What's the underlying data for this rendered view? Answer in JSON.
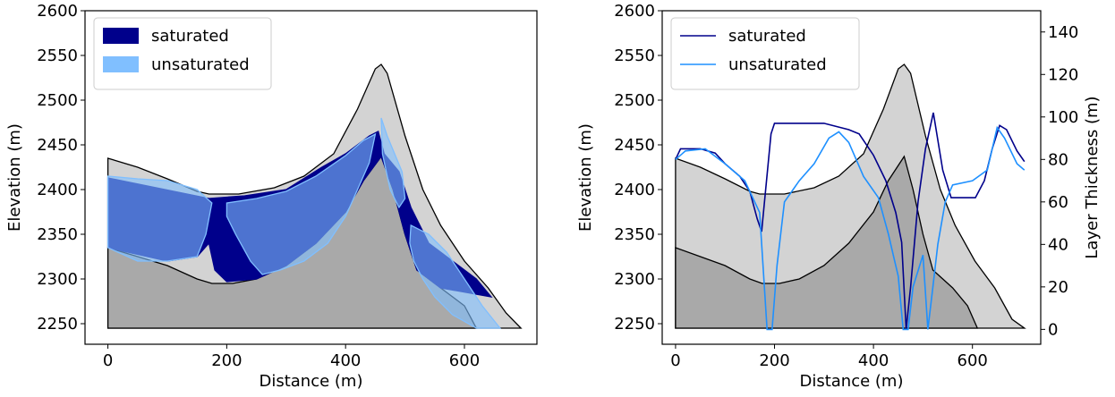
{
  "chart_data": [
    {
      "type": "area",
      "xlabel": "Distance (m)",
      "ylabel": "Elevation (m)",
      "xlim": [
        -38.5,
        722
      ],
      "ylim": [
        2227,
        2600
      ],
      "xticks": [
        0,
        200,
        400,
        600
      ],
      "yticks": [
        2250,
        2300,
        2350,
        2400,
        2450,
        2500,
        2550,
        2600
      ],
      "legend": "upper left",
      "areas": [
        {
          "color": "#d3d3d3",
          "x": [
            0,
            50,
            100,
            150,
            170,
            220,
            280,
            330,
            380,
            420,
            450,
            460,
            470,
            500,
            530,
            560,
            600,
            640,
            670,
            695,
            0
          ],
          "y": [
            2435,
            2425,
            2412,
            2398,
            2395,
            2395,
            2402,
            2415,
            2440,
            2490,
            2535,
            2540,
            2530,
            2460,
            2400,
            2360,
            2320,
            2290,
            2262,
            2245,
            2245
          ]
        },
        {
          "color": "#a9a9a9",
          "x": [
            0,
            50,
            100,
            150,
            175,
            210,
            250,
            300,
            350,
            400,
            430,
            460,
            480,
            500,
            520,
            560,
            600,
            620,
            0
          ],
          "y": [
            2335,
            2325,
            2315,
            2300,
            2295,
            2295,
            2300,
            2315,
            2340,
            2375,
            2410,
            2437,
            2400,
            2350,
            2310,
            2290,
            2270,
            2245,
            2245
          ]
        }
      ],
      "series": [
        {
          "name": "saturated",
          "color": "#00008b",
          "x": [
            0,
            170,
            230,
            300,
            360,
            400,
            440,
            455,
            465,
            490,
            510,
            540,
            580,
            620,
            645,
            560,
            520,
            500,
            480,
            460,
            430,
            400,
            350,
            300,
            250,
            200,
            180,
            170,
            150,
            100,
            0
          ],
          "y": [
            2413,
            2390,
            2393,
            2400,
            2425,
            2440,
            2460,
            2465,
            2440,
            2420,
            2380,
            2340,
            2320,
            2300,
            2280,
            2290,
            2310,
            2350,
            2400,
            2437,
            2410,
            2375,
            2340,
            2315,
            2300,
            2297,
            2310,
            2340,
            2325,
            2320,
            2335
          ]
        },
        {
          "name": "unsaturated",
          "color": "#80bfff",
          "alpha": 0.6,
          "x": [
            0,
            50,
            100,
            150,
            175,
            165,
            150,
            100,
            50,
            0,
            null,
            200,
            250,
            300,
            350,
            400,
            430,
            450,
            440,
            420,
            400,
            370,
            330,
            290,
            260,
            240,
            215,
            200,
            null,
            460,
            470,
            495,
            500,
            490,
            475,
            462,
            null,
            510,
            540,
            570,
            600,
            630,
            660,
            620,
            580,
            550,
            530,
            515,
            508
          ],
          "y": [
            2415,
            2412,
            2410,
            2400,
            2385,
            2350,
            2325,
            2320,
            2320,
            2335,
            null,
            2385,
            2390,
            2398,
            2415,
            2438,
            2455,
            2462,
            2430,
            2400,
            2370,
            2340,
            2320,
            2310,
            2305,
            2320,
            2350,
            2370,
            null,
            2480,
            2460,
            2420,
            2390,
            2380,
            2400,
            2440,
            null,
            2360,
            2350,
            2330,
            2300,
            2270,
            2245,
            2245,
            2260,
            2280,
            2300,
            2320,
            2340
          ]
        }
      ]
    },
    {
      "type": "line",
      "xlabel": "Distance (m)",
      "ylabel": "Elevation (m)",
      "y2label": "Layer Thickness (m)",
      "xlim": [
        -27,
        738
      ],
      "ylim": [
        2227,
        2600
      ],
      "y2lim": [
        -7,
        150
      ],
      "xticks": [
        0,
        200,
        400,
        600
      ],
      "yticks": [
        2250,
        2300,
        2350,
        2400,
        2450,
        2500,
        2550,
        2600
      ],
      "y2ticks": [
        0,
        20,
        40,
        60,
        80,
        100,
        120,
        140
      ],
      "legend": "upper left",
      "areas": [
        {
          "color": "#d3d3d3",
          "x": [
            0,
            50,
            100,
            150,
            170,
            220,
            280,
            330,
            380,
            420,
            450,
            462,
            475,
            505,
            535,
            565,
            605,
            645,
            680,
            705,
            0
          ],
          "y": [
            2435,
            2425,
            2412,
            2398,
            2395,
            2395,
            2402,
            2415,
            2440,
            2490,
            2535,
            2540,
            2530,
            2460,
            2400,
            2360,
            2320,
            2290,
            2255,
            2245,
            2245
          ]
        },
        {
          "color": "#a9a9a9",
          "x": [
            0,
            50,
            100,
            150,
            175,
            210,
            250,
            300,
            350,
            400,
            430,
            462,
            480,
            500,
            520,
            560,
            590,
            610,
            0
          ],
          "y": [
            2335,
            2325,
            2315,
            2300,
            2295,
            2295,
            2300,
            2315,
            2340,
            2375,
            2410,
            2437,
            2400,
            2350,
            2310,
            2290,
            2270,
            2245,
            2245
          ]
        }
      ],
      "series": [
        {
          "name": "saturated",
          "color": "#00008b",
          "axis": "y2",
          "x": [
            0,
            10,
            50,
            80,
            100,
            130,
            150,
            165,
            174,
            193,
            200,
            250,
            300,
            350,
            371,
            400,
            425,
            445,
            457,
            466,
            475,
            490,
            505,
            521,
            540,
            557,
            590,
            606,
            624,
            640,
            655,
            669,
            690,
            705
          ],
          "y": [
            80,
            85,
            85,
            83,
            78,
            72,
            65,
            52,
            46,
            92,
            97,
            97,
            97,
            94,
            92,
            82,
            70,
            55,
            41,
            0,
            20,
            60,
            85,
            102,
            75,
            62,
            62,
            62,
            70,
            85,
            96,
            94,
            84,
            79
          ]
        },
        {
          "name": "unsaturated",
          "color": "#1e90ff",
          "axis": "y2",
          "x": [
            0,
            20,
            60,
            100,
            140,
            170,
            185,
            195,
            205,
            220,
            250,
            280,
            310,
            330,
            350,
            380,
            410,
            430,
            440,
            450,
            460,
            470,
            480,
            500,
            510,
            520,
            530,
            545,
            560,
            600,
            630,
            650,
            665,
            690,
            705
          ],
          "y": [
            80,
            84,
            85,
            78,
            70,
            55,
            0,
            0,
            30,
            60,
            70,
            78,
            90,
            93,
            88,
            72,
            62,
            45,
            35,
            25,
            0,
            0,
            20,
            35,
            0,
            20,
            40,
            60,
            68,
            70,
            75,
            95,
            90,
            78,
            75
          ]
        }
      ]
    }
  ]
}
